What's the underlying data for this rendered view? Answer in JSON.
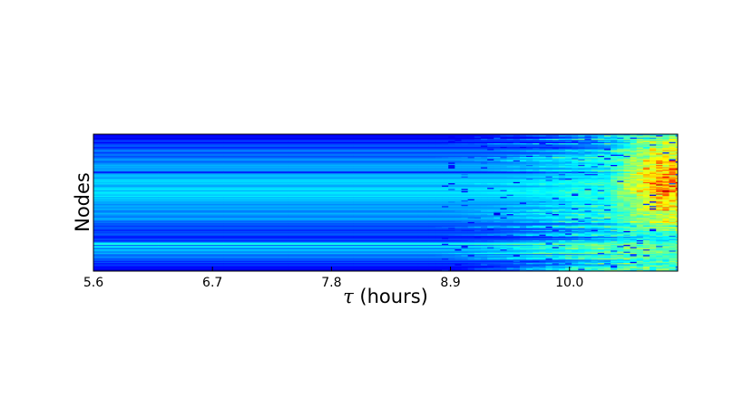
{
  "chart_data": {
    "type": "heatmap",
    "title": "",
    "xlabel_symbol": "τ",
    "xlabel_text": " (hours)",
    "ylabel": "Nodes",
    "x_ticks": [
      "5.6",
      "6.7",
      "7.8",
      "8.9",
      "10.0"
    ],
    "x_tick_values": [
      5.6,
      6.7,
      7.8,
      8.9,
      10.0
    ],
    "xlim": [
      5.6,
      11.0
    ],
    "node_count": 120,
    "colormap": "jet",
    "value_range": [
      0,
      1
    ],
    "grid": false,
    "legend": "none",
    "description_of_values": "Per-node color value over time; early times mostly dark/medium blue, later times (after ~9) shift to cyan/green, and after ~10.4 to yellow/orange/red in upper-middle nodes.",
    "stripe_baseline": [
      0.12,
      0.12,
      0.14,
      0.1,
      0.12,
      0.18,
      0.18,
      0.12,
      0.18,
      0.2,
      0.22,
      0.16,
      0.18,
      0.22,
      0.26,
      0.22,
      0.18,
      0.24,
      0.24,
      0.2,
      0.22,
      0.26,
      0.28,
      0.24,
      0.22,
      0.26,
      0.28,
      0.3,
      0.28,
      0.3,
      0.26,
      0.3,
      0.24,
      0.12,
      0.26,
      0.3,
      0.32,
      0.3,
      0.28,
      0.32,
      0.34,
      0.34,
      0.32,
      0.34,
      0.3,
      0.28,
      0.32,
      0.34,
      0.36,
      0.3,
      0.34,
      0.36,
      0.34,
      0.32,
      0.36,
      0.3,
      0.34,
      0.3,
      0.32,
      0.28,
      0.3,
      0.26,
      0.28,
      0.3,
      0.26,
      0.3,
      0.28,
      0.24,
      0.26,
      0.3,
      0.28,
      0.26,
      0.24,
      0.28,
      0.3,
      0.26,
      0.22,
      0.24,
      0.2,
      0.22,
      0.18,
      0.2,
      0.22,
      0.18,
      0.16,
      0.2,
      0.18,
      0.22,
      0.2,
      0.16,
      0.14,
      0.18,
      0.2,
      0.16,
      0.22,
      0.36,
      0.4,
      0.22,
      0.38,
      0.3,
      0.24,
      0.34,
      0.28,
      0.26,
      0.3,
      0.24,
      0.22,
      0.26,
      0.24,
      0.2,
      0.22,
      0.16,
      0.2,
      0.14,
      0.18,
      0.16,
      0.12,
      0.14,
      0.1,
      0.08
    ]
  }
}
